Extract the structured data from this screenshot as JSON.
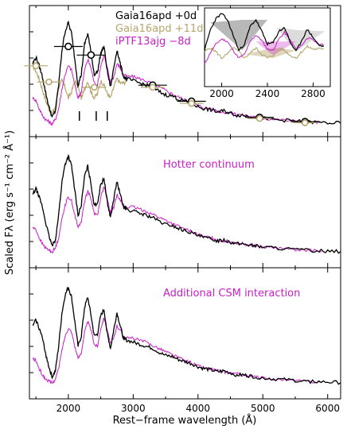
{
  "chart_data": {
    "type": "line",
    "xlabel": "Rest−frame wavelength (Å)",
    "ylabel": "Scaled Fλ (erg s⁻¹ cm⁻² Å⁻¹)",
    "xlim": [
      1400,
      6200
    ],
    "x_ticks": [
      2000,
      3000,
      4000,
      5000,
      6000
    ],
    "x_tick_labels": [
      "2000",
      "3000",
      "4000",
      "5000",
      "6000"
    ],
    "colors": {
      "gaia0": "#000000",
      "gaia11": "#b5a76e",
      "iptf": "#c71fc7",
      "inset_fill": "#9a9a9a"
    },
    "spectra": {
      "gaia0": {
        "name": "Gaia16apd +0d",
        "x": [
          1450,
          1500,
          1550,
          1600,
          1650,
          1700,
          1750,
          1800,
          1850,
          1900,
          1950,
          2000,
          2050,
          2100,
          2150,
          2200,
          2250,
          2300,
          2350,
          2400,
          2450,
          2500,
          2550,
          2600,
          2650,
          2700,
          2750,
          2800,
          2850,
          2900,
          3000,
          3100,
          3200,
          3300,
          3400,
          3500,
          3600,
          3700,
          3800,
          3900,
          4000,
          4100,
          4200,
          4300,
          4400,
          4500,
          4600,
          4700,
          4800,
          4900,
          5000,
          5200,
          5400,
          5600,
          5800,
          6000,
          6200
        ],
        "y": [
          0.62,
          0.68,
          0.6,
          0.5,
          0.35,
          0.22,
          0.12,
          0.18,
          0.42,
          0.74,
          0.92,
          1.0,
          0.9,
          0.66,
          0.42,
          0.52,
          0.8,
          0.9,
          0.72,
          0.52,
          0.54,
          0.72,
          0.78,
          0.55,
          0.4,
          0.58,
          0.75,
          0.62,
          0.5,
          0.48,
          0.46,
          0.44,
          0.42,
          0.4,
          0.36,
          0.33,
          0.32,
          0.29,
          0.27,
          0.25,
          0.22,
          0.2,
          0.19,
          0.17,
          0.18,
          0.16,
          0.14,
          0.14,
          0.13,
          0.12,
          0.11,
          0.1,
          0.09,
          0.08,
          0.075,
          0.07,
          0.065
        ]
      },
      "gaia11": {
        "name": "Gaia16apd +11d",
        "x": [
          1450,
          1500,
          1550,
          1600,
          1650,
          1700,
          1750,
          1800,
          1850,
          1900,
          1950,
          2000,
          2050,
          2100,
          2150,
          2200,
          2250,
          2300,
          2350,
          2400,
          2450,
          2500,
          2550,
          2600,
          2650,
          2700,
          2750,
          2800,
          2850,
          2900
        ],
        "y": [
          0.6,
          0.55,
          0.48,
          0.38,
          0.28,
          0.2,
          0.15,
          0.22,
          0.4,
          0.46,
          0.4,
          0.3,
          0.36,
          0.46,
          0.4,
          0.3,
          0.38,
          0.46,
          0.36,
          0.3,
          0.34,
          0.46,
          0.42,
          0.34,
          0.3,
          0.4,
          0.48,
          0.44,
          0.44,
          0.46
        ]
      },
      "iptf": {
        "name": "iPTF13ajg −8d",
        "x": [
          1450,
          1500,
          1550,
          1600,
          1650,
          1700,
          1750,
          1800,
          1850,
          1900,
          1950,
          2000,
          2050,
          2100,
          2150,
          2200,
          2250,
          2300,
          2350,
          2400,
          2450,
          2500,
          2550,
          2600,
          2650,
          2700,
          2750,
          2800,
          2850,
          2900,
          3000,
          3100,
          3200,
          3300,
          3400,
          3500,
          3600,
          3700,
          3800,
          3900,
          4000,
          4100,
          4200,
          4300,
          4400,
          4500,
          4600,
          4700,
          4800,
          4900,
          5000,
          5200,
          5400,
          5600,
          5800,
          5900
        ],
        "y": [
          0.3,
          0.28,
          0.2,
          0.14,
          0.1,
          0.08,
          0.06,
          0.1,
          0.2,
          0.38,
          0.52,
          0.6,
          0.56,
          0.42,
          0.3,
          0.36,
          0.56,
          0.66,
          0.58,
          0.44,
          0.42,
          0.6,
          0.7,
          0.58,
          0.44,
          0.5,
          0.62,
          0.58,
          0.52,
          0.5,
          0.5,
          0.48,
          0.46,
          0.43,
          0.4,
          0.37,
          0.34,
          0.31,
          0.28,
          0.26,
          0.23,
          0.21,
          0.2,
          0.18,
          0.17,
          0.16,
          0.15,
          0.14,
          0.13,
          0.12,
          0.11,
          0.1,
          0.09,
          0.08,
          0.075,
          0.07
        ]
      }
    },
    "photometry": {
      "x": [
        2000,
        2350,
        3300,
        3900,
        4950,
        5650
      ],
      "y": [
        0.78,
        0.7,
        0.42,
        0.27,
        0.12,
        0.08
      ]
    },
    "photometry_mid": {
      "x": [
        1500,
        1700,
        2400,
        3300,
        3900,
        4950,
        5650
      ],
      "y": [
        0.6,
        0.45,
        0.4,
        0.4,
        0.25,
        0.11,
        0.07
      ]
    },
    "panels": [
      {
        "id": "top",
        "legend": [
          "Gaia16apd +0d",
          "Gaia16apd +11d",
          "iPTF13ajg −8d"
        ],
        "annotation": ""
      },
      {
        "id": "middle",
        "legend": [],
        "annotation": "Hotter continuum"
      },
      {
        "id": "bottom",
        "legend": [],
        "annotation": "Additional CSM interaction"
      }
    ],
    "inset": {
      "xlim": [
        1850,
        2950
      ],
      "x_ticks": [
        2000,
        2400,
        2800
      ],
      "x_tick_labels": [
        "2000",
        "2400",
        "2800"
      ]
    }
  }
}
